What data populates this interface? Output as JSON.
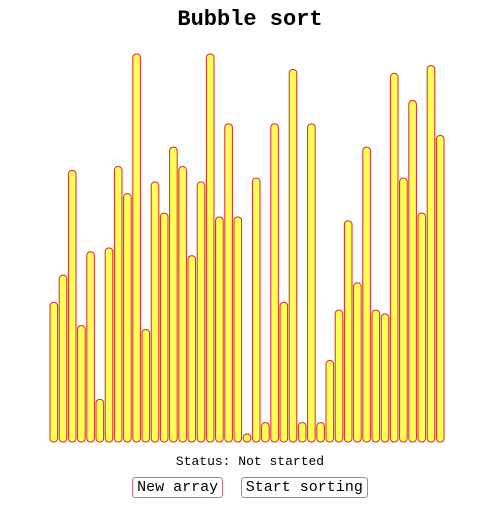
{
  "page": {
    "title": "Bubble sort",
    "status_label": "Status:",
    "status_value": "Not started"
  },
  "controls": {
    "new_array_label": "New array",
    "start_sorting_label": "Start sorting"
  },
  "colors": {
    "bar_fill": "#ffff55",
    "bar_stroke": "#e0242a",
    "button_border": "#e07080"
  },
  "array": {
    "max_value": 100,
    "values": [
      36,
      43,
      70,
      30,
      49,
      11,
      50,
      71,
      64,
      100,
      29,
      67,
      59,
      76,
      71,
      48,
      67,
      100,
      58,
      82,
      58,
      2,
      68,
      5,
      82,
      36,
      96,
      5,
      82,
      5,
      21,
      34,
      57,
      41,
      76,
      34,
      33,
      95,
      68,
      88,
      59,
      97,
      79
    ]
  }
}
